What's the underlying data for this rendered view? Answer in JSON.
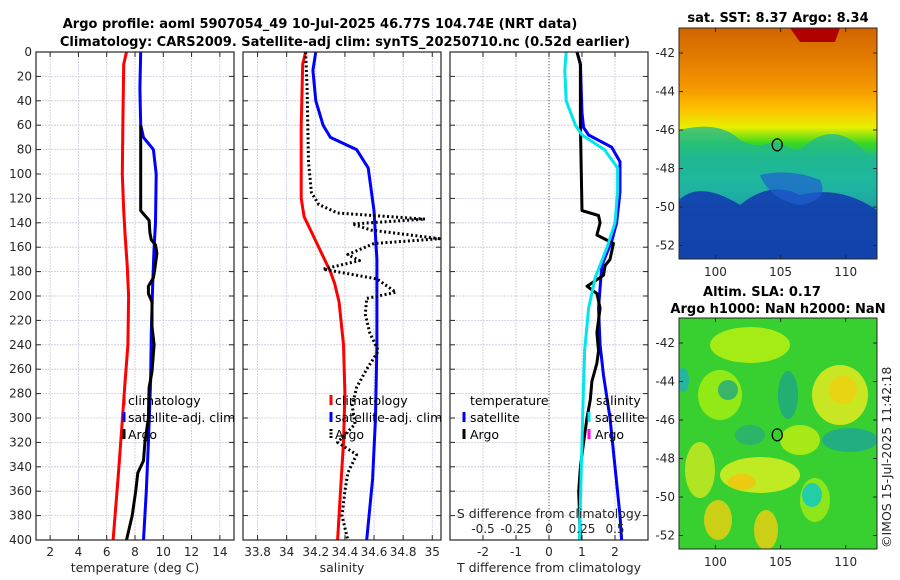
{
  "titles": {
    "line1": "Argo profile: aoml 5907054_49 10-Jul-2025 46.77S 104.74E (NRT data)",
    "line2": "Climatology: CARS2009. Satellite-adj clim: synTS_20250710.nc (0.52d earlier)"
  },
  "colors": {
    "climatology": "#ff0000",
    "satellite": "#0000ff",
    "argo": "#000000",
    "salinity_satellite": "#00e5ee",
    "salinity_argo": "#ff00ff",
    "grid": "#c8c8dc"
  },
  "depth_axis": {
    "ylim": [
      0,
      400
    ],
    "ticks": [
      0,
      20,
      40,
      60,
      80,
      100,
      120,
      140,
      160,
      180,
      200,
      220,
      240,
      260,
      280,
      300,
      320,
      340,
      360,
      380,
      400
    ]
  },
  "chart_data": [
    {
      "type": "line",
      "name": "temperature",
      "xlabel": "temperature (deg C)",
      "xlim": [
        1,
        15
      ],
      "xticks": [
        2,
        4,
        6,
        8,
        10,
        12,
        14
      ],
      "legend": [
        "climatology",
        "satellite-adj. clim",
        "Argo"
      ],
      "series": [
        {
          "name": "climatology",
          "color": "climatology",
          "style": "solid",
          "points": [
            [
              7.4,
              0
            ],
            [
              7.2,
              10
            ],
            [
              7.15,
              50
            ],
            [
              7.1,
              100
            ],
            [
              7.2,
              130
            ],
            [
              7.3,
              150
            ],
            [
              7.45,
              175
            ],
            [
              7.55,
              200
            ],
            [
              7.5,
              240
            ],
            [
              7.3,
              270
            ],
            [
              7.05,
              310
            ],
            [
              6.8,
              350
            ],
            [
              6.45,
              400
            ]
          ]
        },
        {
          "name": "satellite-adj. clim",
          "color": "satellite",
          "style": "solid",
          "points": [
            [
              8.4,
              0
            ],
            [
              8.35,
              30
            ],
            [
              8.4,
              60
            ],
            [
              8.6,
              70
            ],
            [
              9.3,
              80
            ],
            [
              9.5,
              100
            ],
            [
              9.45,
              140
            ],
            [
              9.35,
              160
            ],
            [
              9.25,
              190
            ],
            [
              9.15,
              230
            ],
            [
              9.1,
              270
            ],
            [
              8.95,
              320
            ],
            [
              8.8,
              360
            ],
            [
              8.6,
              400
            ]
          ]
        },
        {
          "name": "Argo",
          "color": "argo",
          "style": "solid",
          "points": [
            [
              8.4,
              60
            ],
            [
              8.4,
              130
            ],
            [
              8.7,
              134
            ],
            [
              9.0,
              138
            ],
            [
              9.05,
              148
            ],
            [
              9.15,
              154
            ],
            [
              9.45,
              158
            ],
            [
              9.55,
              165
            ],
            [
              9.4,
              178
            ],
            [
              9.3,
              185
            ],
            [
              8.95,
              192
            ],
            [
              8.95,
              198
            ],
            [
              9.2,
              205
            ],
            [
              9.2,
              225
            ],
            [
              9.35,
              240
            ],
            [
              9.2,
              262
            ],
            [
              9.0,
              275
            ],
            [
              8.95,
              300
            ],
            [
              8.7,
              320
            ],
            [
              8.6,
              335
            ],
            [
              8.2,
              345
            ],
            [
              8.05,
              360
            ],
            [
              7.8,
              380
            ],
            [
              7.4,
              400
            ]
          ]
        }
      ]
    },
    {
      "type": "line",
      "name": "salinity",
      "xlabel": "salinity",
      "xlim": [
        33.7,
        35.06
      ],
      "xticks": [
        33.8,
        34,
        34.2,
        34.4,
        34.6,
        34.8,
        35
      ],
      "legend": [
        "climatology",
        "satellite-adj. clim",
        "Argo"
      ],
      "series": [
        {
          "name": "climatology",
          "color": "climatology",
          "style": "solid",
          "points": [
            [
              34.13,
              0
            ],
            [
              34.11,
              10
            ],
            [
              34.1,
              60
            ],
            [
              34.1,
              120
            ],
            [
              34.12,
              135
            ],
            [
              34.18,
              150
            ],
            [
              34.24,
              165
            ],
            [
              34.3,
              180
            ],
            [
              34.33,
              190
            ],
            [
              34.36,
              205
            ],
            [
              34.39,
              240
            ],
            [
              34.4,
              280
            ],
            [
              34.39,
              320
            ],
            [
              34.37,
              360
            ],
            [
              34.35,
              400
            ]
          ]
        },
        {
          "name": "satellite-adj. clim",
          "color": "satellite",
          "style": "solid",
          "points": [
            [
              34.2,
              0
            ],
            [
              34.18,
              15
            ],
            [
              34.2,
              40
            ],
            [
              34.25,
              60
            ],
            [
              34.3,
              70
            ],
            [
              34.48,
              80
            ],
            [
              34.56,
              95
            ],
            [
              34.6,
              130
            ],
            [
              34.62,
              170
            ],
            [
              34.62,
              240
            ],
            [
              34.61,
              300
            ],
            [
              34.59,
              350
            ],
            [
              34.55,
              400
            ]
          ]
        },
        {
          "name": "Argo",
          "color": "argo",
          "style": "dotted",
          "points": [
            [
              34.13,
              0
            ],
            [
              34.14,
              30
            ],
            [
              34.15,
              90
            ],
            [
              34.17,
              115
            ],
            [
              34.22,
              125
            ],
            [
              34.35,
              132
            ],
            [
              34.95,
              137
            ],
            [
              34.45,
              141
            ],
            [
              34.58,
              146
            ],
            [
              35.05,
              153
            ],
            [
              34.6,
              157
            ],
            [
              34.42,
              166
            ],
            [
              34.5,
              171
            ],
            [
              34.25,
              178
            ],
            [
              34.62,
              186
            ],
            [
              34.75,
              197
            ],
            [
              34.55,
              202
            ],
            [
              34.54,
              215
            ],
            [
              34.57,
              230
            ],
            [
              34.63,
              245
            ],
            [
              34.55,
              260
            ],
            [
              34.48,
              275
            ],
            [
              34.45,
              290
            ],
            [
              34.47,
              305
            ],
            [
              34.35,
              320
            ],
            [
              34.48,
              330
            ],
            [
              34.42,
              345
            ],
            [
              34.4,
              360
            ],
            [
              34.38,
              380
            ],
            [
              34.42,
              400
            ]
          ]
        }
      ]
    },
    {
      "type": "line",
      "name": "difference",
      "xlabel": "T difference from climatology",
      "xlim": [
        -3,
        3
      ],
      "xticks": [
        -2,
        -1,
        0,
        1,
        2
      ],
      "x2label": "S difference from climatology",
      "x2lim": [
        -0.75,
        0.75
      ],
      "x2ticks": [
        -0.5,
        -0.25,
        0,
        0.25,
        0.5
      ],
      "legend_temperature": {
        "title": "temperature",
        "items": [
          "satellite",
          "Argo"
        ]
      },
      "legend_salinity": {
        "title": "salinity",
        "items": [
          "satellite",
          "Argo"
        ]
      },
      "series": [
        {
          "name": "temperature satellite",
          "color": "satellite",
          "style": "solid",
          "axis": "T",
          "points": [
            [
              0.85,
              0
            ],
            [
              0.95,
              10
            ],
            [
              1.0,
              50
            ],
            [
              1.05,
              62
            ],
            [
              1.2,
              68
            ],
            [
              1.9,
              78
            ],
            [
              2.15,
              90
            ],
            [
              2.15,
              115
            ],
            [
              2.05,
              140
            ],
            [
              1.9,
              155
            ],
            [
              1.6,
              175
            ],
            [
              1.5,
              210
            ],
            [
              1.55,
              240
            ],
            [
              1.65,
              265
            ],
            [
              1.85,
              300
            ],
            [
              2.0,
              340
            ],
            [
              2.15,
              380
            ],
            [
              2.2,
              400
            ]
          ]
        },
        {
          "name": "temperature Argo",
          "color": "argo",
          "style": "solid",
          "axis": "T",
          "points": [
            [
              0.85,
              0
            ],
            [
              0.95,
              10
            ],
            [
              0.95,
              60
            ],
            [
              1.0,
              130
            ],
            [
              1.5,
              134
            ],
            [
              1.55,
              140
            ],
            [
              1.45,
              150
            ],
            [
              1.95,
              157
            ],
            [
              1.85,
              170
            ],
            [
              1.7,
              175
            ],
            [
              1.65,
              183
            ],
            [
              1.15,
              192
            ],
            [
              1.45,
              198
            ],
            [
              1.55,
              210
            ],
            [
              1.45,
              230
            ],
            [
              1.5,
              245
            ],
            [
              1.45,
              255
            ],
            [
              1.3,
              270
            ],
            [
              1.25,
              285
            ],
            [
              1.15,
              300
            ],
            [
              1.05,
              320
            ],
            [
              0.95,
              340
            ],
            [
              0.9,
              360
            ],
            [
              0.95,
              400
            ]
          ]
        },
        {
          "name": "salinity satellite",
          "color": "salinity_satellite",
          "style": "solid",
          "axis": "S",
          "points": [
            [
              0.13,
              0
            ],
            [
              0.12,
              15
            ],
            [
              0.13,
              40
            ],
            [
              0.2,
              60
            ],
            [
              0.25,
              68
            ],
            [
              0.42,
              80
            ],
            [
              0.52,
              95
            ],
            [
              0.52,
              115
            ],
            [
              0.5,
              140
            ],
            [
              0.44,
              160
            ],
            [
              0.35,
              185
            ],
            [
              0.3,
              210
            ],
            [
              0.27,
              245
            ],
            [
              0.26,
              280
            ],
            [
              0.25,
              320
            ],
            [
              0.24,
              360
            ],
            [
              0.23,
              400
            ]
          ]
        }
      ]
    },
    {
      "type": "heatmap",
      "name": "sst-map",
      "title": "sat. SST: 8.37 Argo: 8.34",
      "xlim": [
        97.2,
        112.4
      ],
      "ylim": [
        -52.7,
        -40.7
      ],
      "xticks": [
        100,
        105,
        110
      ],
      "yticks": [
        -42,
        -44,
        -46,
        -48,
        -50,
        -52
      ],
      "marker": {
        "lon": 104.74,
        "lat": -46.77
      }
    },
    {
      "type": "heatmap",
      "name": "sla-map",
      "title_line1": "Altim. SLA: 0.17",
      "title_line2": "Argo h1000: NaN h2000: NaN",
      "xlim": [
        97.2,
        112.4
      ],
      "ylim": [
        -52.7,
        -40.7
      ],
      "xticks": [
        100,
        105,
        110
      ],
      "yticks": [
        -42,
        -44,
        -46,
        -48,
        -50,
        -52
      ],
      "marker": {
        "lon": 104.74,
        "lat": -46.77
      }
    }
  ],
  "credit": "©IMOS 15-Jul-2025 11:42:18"
}
